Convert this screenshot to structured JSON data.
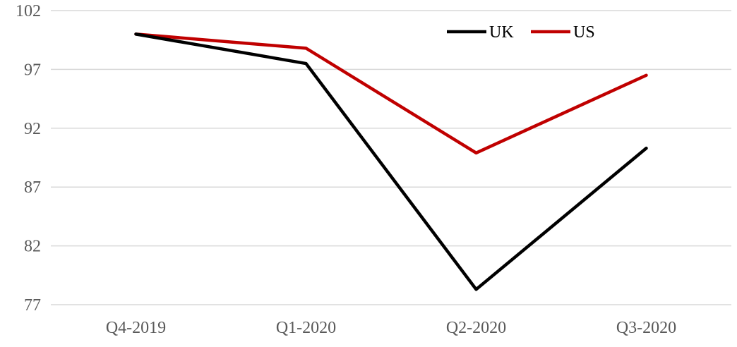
{
  "chart_data": {
    "type": "line",
    "categories": [
      "Q4-2019",
      "Q1-2020",
      "Q2-2020",
      "Q3-2020"
    ],
    "series": [
      {
        "name": "UK",
        "values": [
          100,
          97.5,
          78.3,
          90.3
        ],
        "color": "#000000"
      },
      {
        "name": "US",
        "values": [
          100,
          98.8,
          89.9,
          96.5
        ],
        "color": "#c00000"
      }
    ],
    "ylim": [
      77,
      102
    ],
    "yticks": [
      "102",
      "97",
      "92",
      "87",
      "82",
      "77"
    ],
    "grid": true,
    "legend_position": "top-right"
  }
}
